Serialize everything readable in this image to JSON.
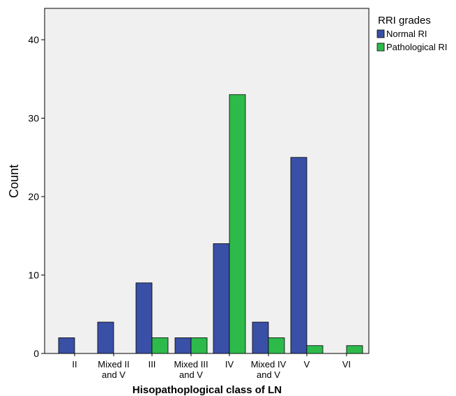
{
  "chart_data": {
    "type": "bar",
    "categories": [
      "II",
      "Mixed II and V",
      "III",
      "Mixed III and V",
      "IV",
      "Mixed IV and V",
      "V",
      "VI"
    ],
    "category_label_lines": [
      [
        "II"
      ],
      [
        "Mixed II",
        "and V"
      ],
      [
        "III"
      ],
      [
        "Mixed III",
        "and V"
      ],
      [
        "IV"
      ],
      [
        "Mixed IV",
        "and V"
      ],
      [
        "V"
      ],
      [
        "VI"
      ]
    ],
    "series": [
      {
        "name": "Normal RI",
        "color": "#3a4fa6",
        "values": [
          2,
          4,
          9,
          2,
          14,
          4,
          25,
          0
        ]
      },
      {
        "name": "Pathological RI",
        "color": "#2dba4b",
        "values": [
          0,
          0,
          2,
          2,
          33,
          2,
          1,
          1
        ]
      }
    ],
    "xlabel": "Hisopathoplogical class of LN",
    "ylabel": "Count",
    "ylim": [
      0,
      44
    ],
    "yticks": [
      0,
      10,
      20,
      30,
      40
    ],
    "legend": {
      "title": "RRI grades",
      "placement": "top-right, outside plot"
    },
    "plot_background": "#f0f0f0",
    "grid": false
  }
}
